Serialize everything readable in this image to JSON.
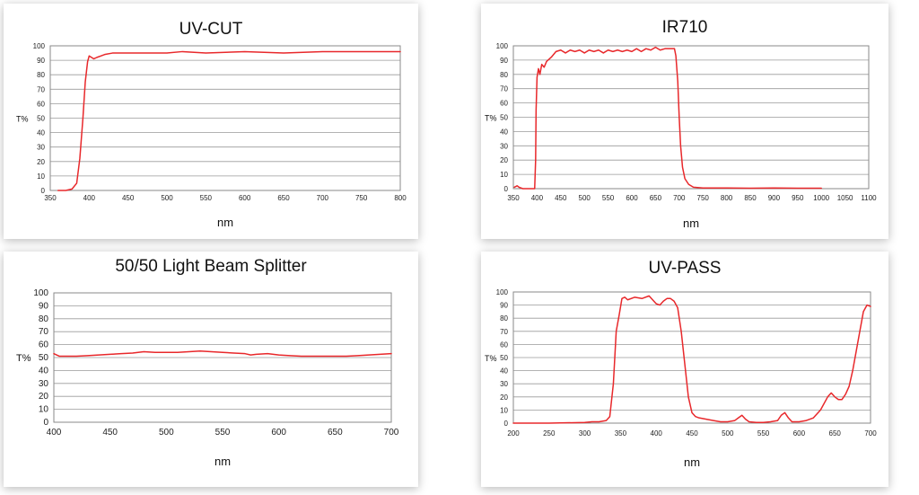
{
  "chart_data": [
    {
      "id": "uvcut",
      "type": "line",
      "title": "UV-CUT",
      "xlabel": "nm",
      "ylabel": "T%",
      "xlim": [
        350,
        800
      ],
      "ylim": [
        0,
        100
      ],
      "xticks": [
        350,
        400,
        450,
        500,
        550,
        600,
        650,
        700,
        750,
        800
      ],
      "yticks": [
        0,
        10,
        20,
        30,
        40,
        50,
        60,
        70,
        80,
        90,
        100
      ],
      "grid": true,
      "color": "#e8282b",
      "series": [
        {
          "x": [
            360,
            370,
            378,
            384,
            388,
            392,
            395,
            398,
            400,
            403,
            406,
            410,
            415,
            420,
            430,
            450,
            500,
            520,
            550,
            600,
            650,
            700,
            750,
            800
          ],
          "y": [
            0,
            0,
            1,
            5,
            22,
            50,
            75,
            89,
            93,
            92,
            91,
            92,
            93,
            94,
            95,
            95,
            95,
            96,
            95,
            96,
            95,
            96,
            96,
            96
          ]
        }
      ]
    },
    {
      "id": "ir710",
      "type": "line",
      "title": "IR710",
      "xlabel": "nm",
      "ylabel": "T%",
      "xlim": [
        350,
        1100
      ],
      "ylim": [
        0,
        100
      ],
      "xticks": [
        350,
        400,
        450,
        500,
        550,
        600,
        650,
        700,
        750,
        800,
        850,
        900,
        950,
        1000,
        1050,
        1100
      ],
      "yticks": [
        0,
        10,
        20,
        30,
        40,
        50,
        60,
        70,
        80,
        90,
        100
      ],
      "grid": true,
      "color": "#e8282b",
      "series": [
        {
          "x": [
            352,
            358,
            362,
            370,
            385,
            395,
            397,
            398,
            400,
            403,
            406,
            410,
            415,
            420,
            430,
            440,
            450,
            460,
            470,
            480,
            490,
            500,
            510,
            520,
            530,
            540,
            550,
            560,
            570,
            580,
            590,
            600,
            610,
            620,
            630,
            640,
            650,
            660,
            670,
            680,
            690,
            693,
            697,
            700,
            703,
            707,
            712,
            720,
            730,
            750,
            800,
            850,
            900,
            950,
            1000
          ],
          "y": [
            1,
            2,
            1,
            0,
            0,
            0,
            20,
            55,
            78,
            84,
            80,
            87,
            85,
            89,
            92,
            96,
            97,
            95,
            97,
            96,
            97,
            95,
            97,
            96,
            97,
            95,
            97,
            96,
            97,
            96,
            97,
            96,
            98,
            96,
            98,
            97,
            99,
            97,
            98,
            98,
            98,
            93,
            75,
            50,
            30,
            15,
            7,
            3,
            1,
            0.5,
            0.5,
            0.3,
            0.5,
            0.3,
            0.3
          ]
        }
      ]
    },
    {
      "id": "split",
      "type": "line",
      "title": "50/50 Light Beam Splitter",
      "xlabel": "nm",
      "ylabel": "T%",
      "xlim": [
        400,
        700
      ],
      "ylim": [
        0,
        100
      ],
      "xticks": [
        400,
        450,
        500,
        550,
        600,
        650,
        700
      ],
      "yticks": [
        0,
        10,
        20,
        30,
        40,
        50,
        60,
        70,
        80,
        90,
        100
      ],
      "grid": true,
      "color": "#e8282b",
      "series": [
        {
          "x": [
            400,
            405,
            410,
            420,
            430,
            440,
            450,
            460,
            470,
            480,
            490,
            500,
            510,
            520,
            530,
            540,
            550,
            560,
            570,
            575,
            580,
            590,
            600,
            610,
            620,
            630,
            640,
            650,
            660,
            670,
            680,
            690,
            700
          ],
          "y": [
            53,
            51,
            51,
            51,
            51.5,
            52,
            52.5,
            53,
            53.5,
            54.5,
            54,
            54,
            54,
            54.5,
            55,
            54.5,
            54,
            53.5,
            53,
            52,
            52.5,
            53,
            52,
            51.5,
            51,
            51,
            51,
            51,
            51,
            51.5,
            52,
            52.5,
            53
          ]
        }
      ]
    },
    {
      "id": "uvpass",
      "type": "line",
      "title": "UV-PASS",
      "xlabel": "nm",
      "ylabel": "T%",
      "xlim": [
        200,
        700
      ],
      "ylim": [
        0,
        100
      ],
      "xticks": [
        200,
        250,
        300,
        350,
        400,
        450,
        500,
        550,
        600,
        650,
        700
      ],
      "yticks": [
        0,
        10,
        20,
        30,
        40,
        50,
        60,
        70,
        80,
        90,
        100
      ],
      "grid": true,
      "color": "#e8282b",
      "series": [
        {
          "x": [
            200,
            250,
            300,
            310,
            320,
            330,
            335,
            340,
            344,
            348,
            352,
            356,
            360,
            370,
            380,
            390,
            400,
            405,
            410,
            415,
            420,
            425,
            430,
            435,
            440,
            445,
            450,
            455,
            460,
            470,
            480,
            490,
            500,
            510,
            515,
            520,
            525,
            530,
            540,
            550,
            560,
            570,
            575,
            580,
            585,
            590,
            600,
            610,
            620,
            630,
            640,
            645,
            650,
            655,
            660,
            665,
            670,
            675,
            680,
            685,
            690,
            695,
            700
          ],
          "y": [
            0,
            0,
            0.5,
            1,
            1,
            2,
            5,
            30,
            70,
            82,
            95,
            96,
            94,
            96,
            95,
            97,
            91,
            90,
            93,
            95,
            95,
            93,
            88,
            70,
            45,
            20,
            8,
            5,
            4,
            3,
            2,
            1,
            1,
            2,
            4,
            6,
            3,
            1,
            0.5,
            0.5,
            1,
            2,
            6,
            8,
            4,
            1,
            1,
            2,
            4,
            10,
            20,
            23,
            20,
            18,
            18,
            22,
            28,
            40,
            55,
            70,
            85,
            90,
            89
          ]
        }
      ]
    }
  ]
}
